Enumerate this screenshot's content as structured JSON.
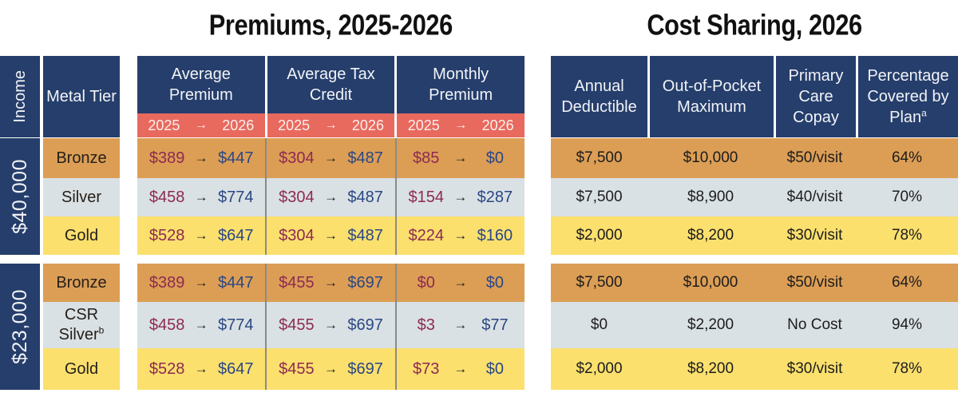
{
  "titles": {
    "premiums": "Premiums, 2025-2026",
    "cost_sharing": "Cost Sharing, 2026"
  },
  "glyphs": {
    "arrow": "→"
  },
  "header": {
    "income": "Income",
    "metal_tier": "Metal Tier",
    "premium_columns": [
      "Average Premium",
      "Average Tax Credit",
      "Monthly Premium"
    ],
    "year_2025": "2025",
    "year_2026": "2026",
    "cost_columns": [
      "Annual Deductible",
      "Out-of-Pocket Maximum",
      "Primary Care Copay"
    ],
    "cost_column_4": {
      "label": "Percentage Covered by Plan",
      "superscript": "a"
    }
  },
  "groups": [
    {
      "income": "$40,000",
      "rows": [
        {
          "tier": "Bronze",
          "tier_superscript": "",
          "avg_premium": [
            "$389",
            "$447"
          ],
          "tax_credit": [
            "$304",
            "$487"
          ],
          "monthly_premium": [
            "$85",
            "$0"
          ],
          "deductible": "$7,500",
          "oop_max": "$10,000",
          "copay": "$50/visit",
          "pct_covered": "64%"
        },
        {
          "tier": "Silver",
          "tier_superscript": "",
          "avg_premium": [
            "$458",
            "$774"
          ],
          "tax_credit": [
            "$304",
            "$487"
          ],
          "monthly_premium": [
            "$154",
            "$287"
          ],
          "deductible": "$7,500",
          "oop_max": "$8,900",
          "copay": "$40/visit",
          "pct_covered": "70%"
        },
        {
          "tier": "Gold",
          "tier_superscript": "",
          "avg_premium": [
            "$528",
            "$647"
          ],
          "tax_credit": [
            "$304",
            "$487"
          ],
          "monthly_premium": [
            "$224",
            "$160"
          ],
          "deductible": "$2,000",
          "oop_max": "$8,200",
          "copay": "$30/visit",
          "pct_covered": "78%"
        }
      ]
    },
    {
      "income": "$23,000",
      "rows": [
        {
          "tier": "Bronze",
          "tier_superscript": "",
          "avg_premium": [
            "$389",
            "$447"
          ],
          "tax_credit": [
            "$455",
            "$697"
          ],
          "monthly_premium": [
            "$0",
            "$0"
          ],
          "deductible": "$7,500",
          "oop_max": "$10,000",
          "copay": "$50/visit",
          "pct_covered": "64%"
        },
        {
          "tier": "CSR Silver",
          "tier_superscript": "b",
          "avg_premium": [
            "$458",
            "$774"
          ],
          "tax_credit": [
            "$455",
            "$697"
          ],
          "monthly_premium": [
            "$3",
            "$77"
          ],
          "deductible": "$0",
          "oop_max": "$2,200",
          "copay": "No Cost",
          "pct_covered": "94%"
        },
        {
          "tier": "Gold",
          "tier_superscript": "",
          "avg_premium": [
            "$528",
            "$647"
          ],
          "tax_credit": [
            "$455",
            "$697"
          ],
          "monthly_premium": [
            "$73",
            "$0"
          ],
          "deductible": "$2,000",
          "oop_max": "$8,200",
          "copay": "$30/visit",
          "pct_covered": "78%"
        }
      ]
    }
  ],
  "colors": {
    "navy_header": "#253E6C",
    "salmon_subheader": "#E8695E",
    "bronze_row": "#DC9E55",
    "silver_row": "#DAE1E4",
    "gold_row": "#FBE06E",
    "value_2025_text": "#8D2A51",
    "value_2026_text": "#2A4784",
    "divider_gray": "#8A8A8A",
    "title_text": "#111111"
  },
  "chart_data": {
    "type": "table",
    "title": "Premiums, 2025-2026 | Cost Sharing, 2026",
    "columns": [
      "Income",
      "Metal Tier",
      "Average Premium 2025",
      "Average Premium 2026",
      "Average Tax Credit 2025",
      "Average Tax Credit 2026",
      "Monthly Premium 2025",
      "Monthly Premium 2026",
      "Annual Deductible",
      "Out-of-Pocket Maximum",
      "Primary Care Copay",
      "Percentage Covered by Plan"
    ],
    "rows": [
      [
        "$40,000",
        "Bronze",
        389,
        447,
        304,
        487,
        85,
        0,
        "$7,500",
        "$10,000",
        "$50/visit",
        "64%"
      ],
      [
        "$40,000",
        "Silver",
        458,
        774,
        304,
        487,
        154,
        287,
        "$7,500",
        "$8,900",
        "$40/visit",
        "70%"
      ],
      [
        "$40,000",
        "Gold",
        528,
        647,
        304,
        487,
        224,
        160,
        "$2,000",
        "$8,200",
        "$30/visit",
        "78%"
      ],
      [
        "$23,000",
        "Bronze",
        389,
        447,
        455,
        697,
        0,
        0,
        "$7,500",
        "$10,000",
        "$50/visit",
        "64%"
      ],
      [
        "$23,000",
        "CSR Silver (b)",
        458,
        774,
        455,
        697,
        3,
        77,
        "$0",
        "$2,200",
        "No Cost",
        "94%"
      ],
      [
        "$23,000",
        "Gold",
        528,
        647,
        455,
        697,
        73,
        0,
        "$2,000",
        "$8,200",
        "$30/visit",
        "78%"
      ]
    ]
  }
}
